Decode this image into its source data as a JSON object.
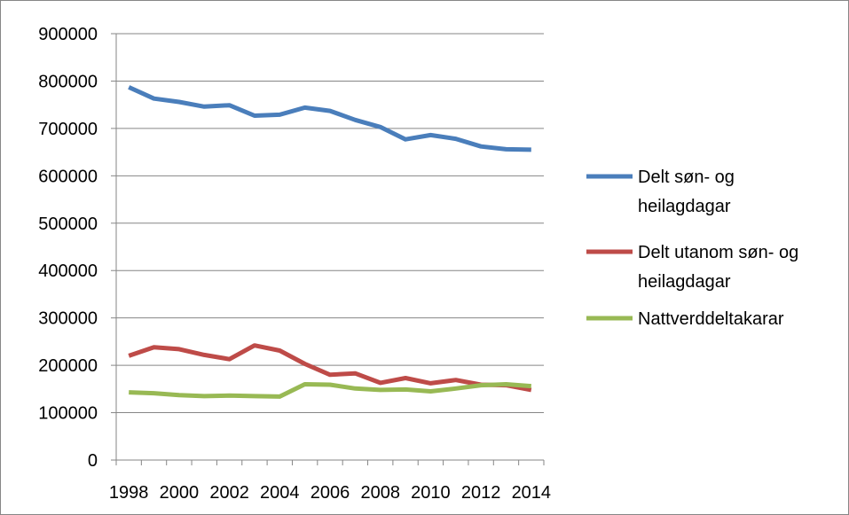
{
  "chart_data": {
    "type": "line",
    "title": "",
    "xlabel": "",
    "ylabel": "",
    "x": [
      1998,
      1999,
      2000,
      2001,
      2002,
      2003,
      2004,
      2005,
      2006,
      2007,
      2008,
      2009,
      2010,
      2011,
      2012,
      2013,
      2014
    ],
    "x_tick_labels": [
      "1998",
      "2000",
      "2002",
      "2004",
      "2006",
      "2008",
      "2010",
      "2012",
      "2014"
    ],
    "ylim": [
      0,
      900000
    ],
    "y_ticks": [
      0,
      100000,
      200000,
      300000,
      400000,
      500000,
      600000,
      700000,
      800000,
      900000
    ],
    "y_tick_labels": [
      "0",
      "100000",
      "200000",
      "300000",
      "400000",
      "500000",
      "600000",
      "700000",
      "800000",
      "900000"
    ],
    "grid": "horizontal",
    "legend_position": "right",
    "series": [
      {
        "name_lines": [
          "Delt søn- og",
          "heilagdagar"
        ],
        "color": "#4a7ebb",
        "values": [
          787000,
          763000,
          756000,
          746000,
          749000,
          727000,
          729000,
          744000,
          737000,
          718000,
          703000,
          677000,
          686000,
          678000,
          662000,
          656000,
          655000
        ]
      },
      {
        "name_lines": [
          "Delt utanom søn- og",
          "heilagdagar"
        ],
        "color": "#be4b48",
        "values": [
          220000,
          238000,
          234000,
          222000,
          213000,
          242000,
          231000,
          203000,
          180000,
          183000,
          163000,
          173000,
          162000,
          169000,
          159000,
          158000,
          148000
        ]
      },
      {
        "name_lines": [
          "Nattverddeltakarar"
        ],
        "color": "#98b954",
        "values": [
          143000,
          141000,
          137000,
          135000,
          136000,
          135000,
          134000,
          160000,
          159000,
          151000,
          148000,
          149000,
          145000,
          151000,
          158000,
          160000,
          156000
        ]
      }
    ]
  }
}
